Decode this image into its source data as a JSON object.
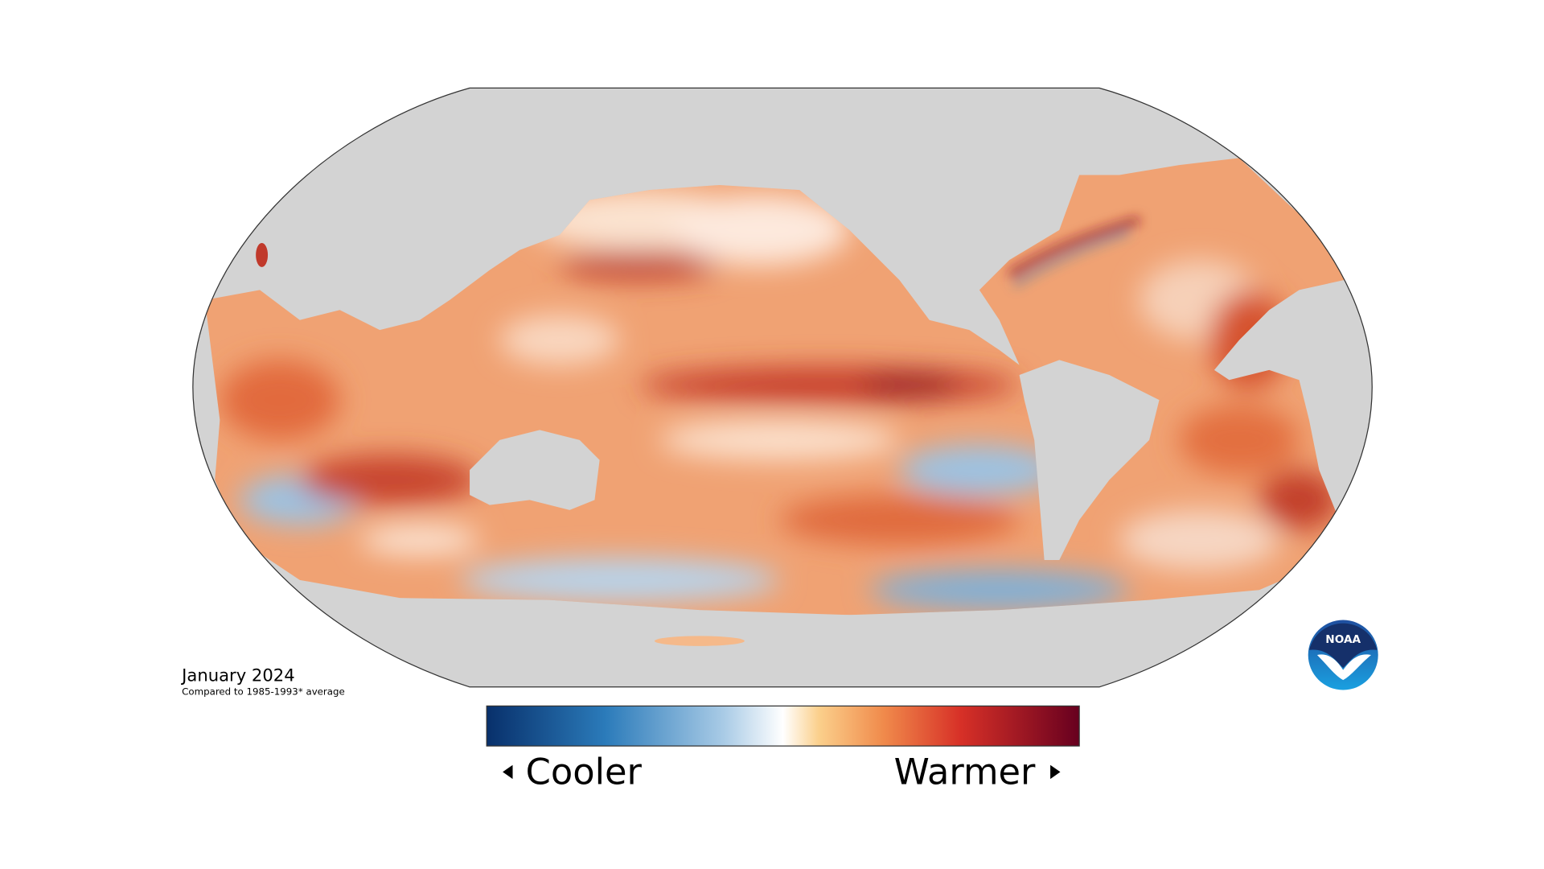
{
  "map": {
    "title": "January 2024",
    "subtitle": "Compared to 1985-1993* average"
  },
  "legend": {
    "low_label": "Cooler",
    "high_label": "Warmer"
  },
  "logo": {
    "text": "NOAA"
  }
}
